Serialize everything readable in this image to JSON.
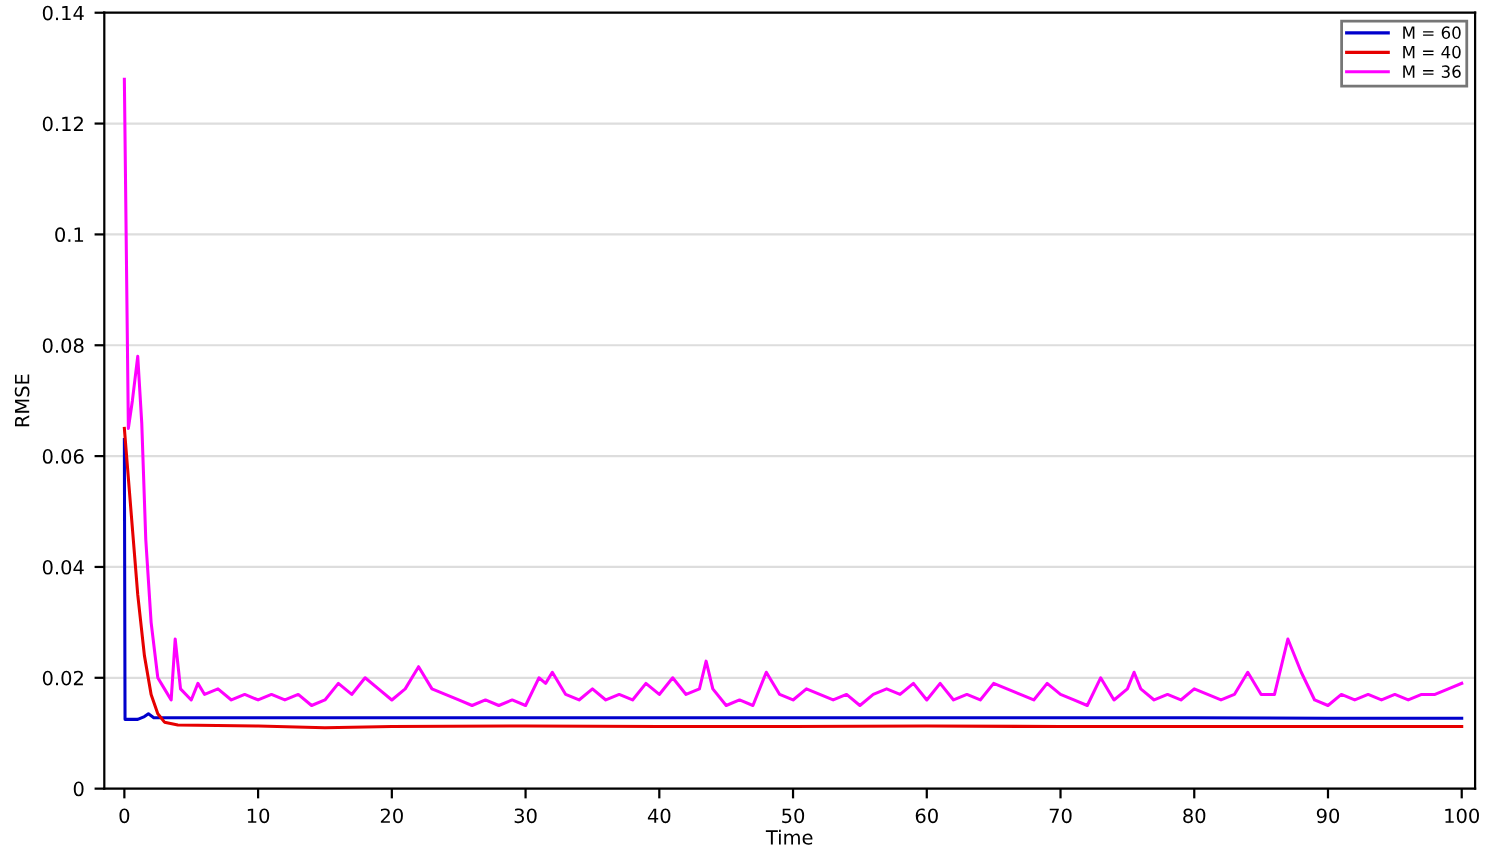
{
  "chart_data": {
    "type": "line",
    "xlabel": "Time",
    "ylabel": "RMSE",
    "xlim": [
      -1.5,
      101
    ],
    "xticks": [
      0,
      10,
      20,
      30,
      40,
      50,
      60,
      70,
      80,
      90,
      100
    ],
    "ylim": [
      0,
      0.14
    ],
    "yticks": [
      0,
      0.02,
      0.04,
      0.06,
      0.08,
      0.1,
      0.12,
      0.14
    ],
    "grid": "y",
    "legend": "top right",
    "line_style": "solid",
    "series": [
      {
        "name": "M = 60",
        "color": "#0000cc",
        "x": [
          0,
          0.05,
          1,
          1.5,
          1.8,
          2.2,
          3,
          10,
          20,
          30,
          40,
          50,
          60,
          70,
          80,
          90,
          100
        ],
        "values": [
          0.063,
          0.0125,
          0.0125,
          0.013,
          0.0135,
          0.0128,
          0.0128,
          0.0128,
          0.0128,
          0.0128,
          0.0128,
          0.0128,
          0.0128,
          0.0128,
          0.0128,
          0.0127,
          0.0127
        ]
      },
      {
        "name": "M = 40",
        "color": "#e60000",
        "x": [
          0,
          0.5,
          1,
          1.5,
          2,
          2.5,
          3,
          4,
          10,
          15,
          20,
          30,
          40,
          50,
          60,
          70,
          80,
          90,
          100
        ],
        "values": [
          0.065,
          0.05,
          0.035,
          0.024,
          0.017,
          0.0135,
          0.012,
          0.0115,
          0.0113,
          0.011,
          0.0112,
          0.0113,
          0.0112,
          0.0112,
          0.0113,
          0.0112,
          0.0112,
          0.0112,
          0.0112
        ]
      },
      {
        "name": "M = 36",
        "color": "#ff00ff",
        "x": [
          0,
          0.3,
          0.6,
          1,
          1.3,
          1.6,
          2,
          2.5,
          3,
          3.5,
          3.8,
          4.2,
          5,
          5.5,
          6,
          7,
          8,
          9,
          10,
          11,
          12,
          13,
          14,
          15,
          16,
          17,
          18,
          19,
          20,
          21,
          22,
          23,
          24,
          25,
          26,
          27,
          28,
          29,
          30,
          31,
          31.5,
          32,
          33,
          34,
          35,
          36,
          37,
          38,
          39,
          40,
          41,
          42,
          43,
          43.5,
          44,
          45,
          46,
          47,
          48,
          49,
          50,
          51,
          52,
          53,
          54,
          55,
          56,
          57,
          58,
          59,
          60,
          61,
          62,
          63,
          64,
          65,
          66,
          67,
          68,
          69,
          70,
          71,
          72,
          73,
          74,
          75,
          75.5,
          76,
          77,
          78,
          79,
          80,
          81,
          82,
          83,
          84,
          85,
          86,
          87,
          88,
          89,
          90,
          91,
          92,
          93,
          94,
          95,
          96,
          97,
          98,
          99,
          100
        ],
        "values": [
          0.128,
          0.065,
          0.07,
          0.078,
          0.066,
          0.045,
          0.03,
          0.02,
          0.018,
          0.016,
          0.027,
          0.018,
          0.016,
          0.019,
          0.017,
          0.018,
          0.016,
          0.017,
          0.016,
          0.017,
          0.016,
          0.017,
          0.015,
          0.016,
          0.019,
          0.017,
          0.02,
          0.018,
          0.016,
          0.018,
          0.022,
          0.018,
          0.017,
          0.016,
          0.015,
          0.016,
          0.015,
          0.016,
          0.015,
          0.02,
          0.019,
          0.021,
          0.017,
          0.016,
          0.018,
          0.016,
          0.017,
          0.016,
          0.019,
          0.017,
          0.02,
          0.017,
          0.018,
          0.023,
          0.018,
          0.015,
          0.016,
          0.015,
          0.021,
          0.017,
          0.016,
          0.018,
          0.017,
          0.016,
          0.017,
          0.015,
          0.017,
          0.018,
          0.017,
          0.019,
          0.016,
          0.019,
          0.016,
          0.017,
          0.016,
          0.019,
          0.018,
          0.017,
          0.016,
          0.019,
          0.017,
          0.016,
          0.015,
          0.02,
          0.016,
          0.018,
          0.021,
          0.018,
          0.016,
          0.017,
          0.016,
          0.018,
          0.017,
          0.016,
          0.017,
          0.021,
          0.017,
          0.017,
          0.027,
          0.021,
          0.016,
          0.015,
          0.017,
          0.016,
          0.017,
          0.016,
          0.017,
          0.016,
          0.017,
          0.017,
          0.018,
          0.019
        ]
      }
    ]
  }
}
